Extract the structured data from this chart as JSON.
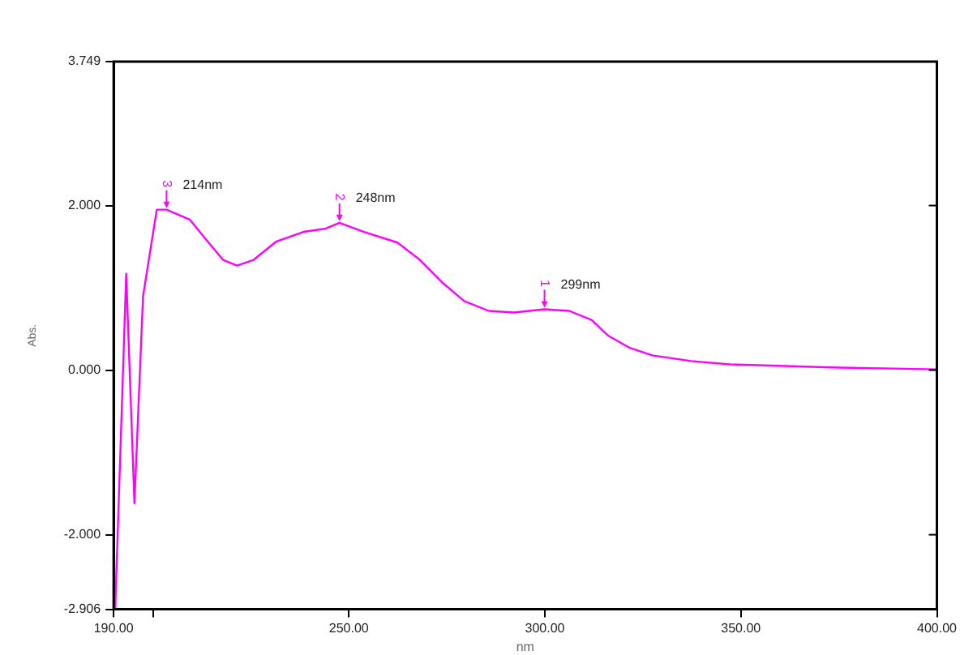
{
  "chart_data": {
    "type": "line",
    "xlabel": "nm",
    "ylabel": "Abs.",
    "x": [
      190.4,
      193.2,
      195.3,
      197.5,
      201.0,
      203.5,
      209.4,
      213.7,
      217.9,
      221.5,
      225.7,
      231.4,
      238.4,
      244.1,
      247.6,
      253.9,
      262.4,
      268.1,
      273.7,
      279.4,
      285.7,
      292.1,
      299.9,
      306.2,
      311.9,
      316.1,
      321.7,
      327.4,
      337.3,
      347.2,
      361.3,
      375.4,
      400
    ],
    "series": [
      {
        "color": "#ff00ff",
        "values": [
          -2.9,
          1.17,
          -1.62,
          0.9,
          1.95,
          1.95,
          1.83,
          1.58,
          1.34,
          1.27,
          1.34,
          1.56,
          1.68,
          1.72,
          1.79,
          1.68,
          1.55,
          1.34,
          1.07,
          0.84,
          0.72,
          0.7,
          0.74,
          0.72,
          0.61,
          0.42,
          0.27,
          0.18,
          0.11,
          0.07,
          0.05,
          0.03,
          0.01
        ]
      }
    ],
    "xlim": [
      190,
      400
    ],
    "xticks": [
      {
        "value": 190,
        "label": "190.00"
      },
      {
        "value": 200,
        "label": null
      },
      {
        "value": 250,
        "label": "250.00"
      },
      {
        "value": 300,
        "label": "300.00"
      },
      {
        "value": 350,
        "label": "350.00"
      },
      {
        "value": 400,
        "label": "400.00"
      }
    ],
    "ylim": [
      -2.906,
      3.749
    ],
    "yticks": [
      {
        "value": -2.906,
        "label": "-2.906"
      },
      {
        "value": -2,
        "label": "-2.000"
      },
      {
        "value": 0,
        "label": "0.000"
      },
      {
        "value": 2,
        "label": "2.000"
      },
      {
        "value": 3.749,
        "label": "3.749"
      }
    ],
    "annotations": [
      {
        "text": "214nm",
        "x": 203.5,
        "y": 1.95
      },
      {
        "text": "3",
        "x": 203.5,
        "y": 1.95
      },
      {
        "text": "248nm",
        "x": 247.6,
        "y": 1.79
      },
      {
        "text": "2",
        "x": 247.6,
        "y": 1.79
      },
      {
        "text": "299nm",
        "x": 299.9,
        "y": 0.74
      },
      {
        "text": "1",
        "x": 299.9,
        "y": 0.74
      }
    ],
    "grid": false,
    "legend": false,
    "marker": "none",
    "line_style": "solid"
  }
}
